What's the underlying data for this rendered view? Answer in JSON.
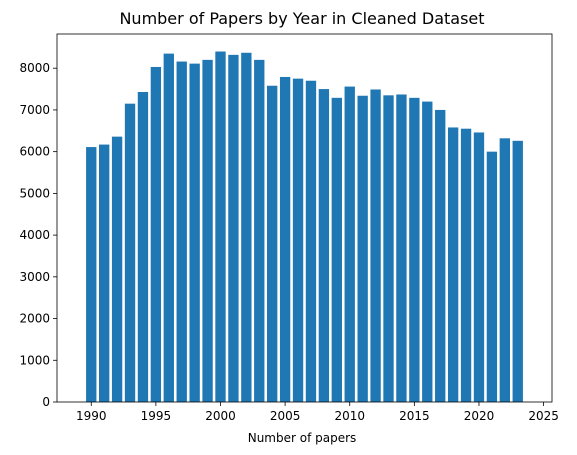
{
  "chart_data": {
    "type": "bar",
    "title": "Number of Papers by Year in Cleaned Dataset",
    "xlabel": "Number of papers",
    "ylabel": "",
    "x": [
      1990,
      1991,
      1992,
      1993,
      1994,
      1995,
      1996,
      1997,
      1998,
      1999,
      2000,
      2001,
      2002,
      2003,
      2004,
      2005,
      2006,
      2007,
      2008,
      2009,
      2010,
      2011,
      2012,
      2013,
      2014,
      2015,
      2016,
      2017,
      2018,
      2019,
      2020,
      2021,
      2022,
      2023
    ],
    "values": [
      6110,
      6170,
      6360,
      7150,
      7430,
      8030,
      8350,
      8160,
      8110,
      8200,
      8400,
      8320,
      8370,
      8200,
      7580,
      7790,
      7750,
      7700,
      7500,
      7290,
      7560,
      7340,
      7490,
      7350,
      7370,
      7290,
      7200,
      7000,
      6580,
      6550,
      6460,
      6000,
      6320,
      6260
    ],
    "xlim": [
      1987.35,
      2025.65
    ],
    "ylim": [
      0,
      8820
    ],
    "xticks": [
      1990,
      1995,
      2000,
      2005,
      2010,
      2015,
      2020,
      2025
    ],
    "yticks": [
      0,
      1000,
      2000,
      3000,
      4000,
      5000,
      6000,
      7000,
      8000
    ],
    "bar_color": "#1f77b4",
    "grid": false,
    "legend": "none"
  }
}
